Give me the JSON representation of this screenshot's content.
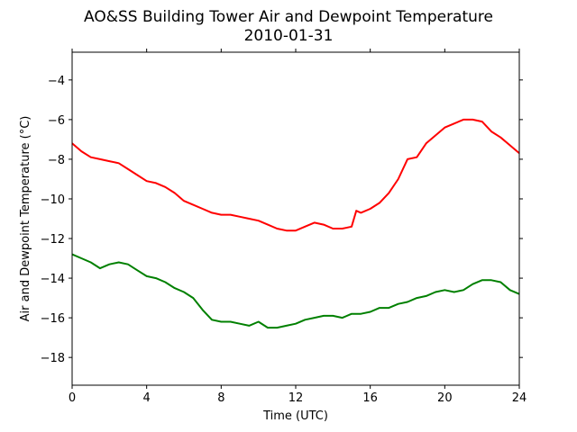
{
  "chart_data": {
    "type": "line",
    "title": "AO&SS Building Tower Air and Dewpoint Temperature",
    "subtitle": "2010-01-31",
    "xlabel": "Time (UTC)",
    "ylabel": "Air and Dewpoint Temperature (°C)",
    "xlim": [
      0,
      24
    ],
    "ylim": [
      -19.4,
      -2.6
    ],
    "xticks": [
      "0",
      "4",
      "8",
      "12",
      "16",
      "20",
      "24"
    ],
    "yticks": [
      "−4",
      "−6",
      "−8",
      "−10",
      "−12",
      "−14",
      "−16",
      "−18"
    ],
    "grid": false,
    "series": [
      {
        "color": "#ff0000",
        "x": [
          0,
          0.5,
          1,
          1.5,
          2,
          2.5,
          3,
          3.5,
          4,
          4.5,
          5,
          5.5,
          6,
          6.5,
          7,
          7.5,
          8,
          8.5,
          9,
          9.5,
          10,
          10.5,
          11,
          11.5,
          12,
          12.5,
          13,
          13.5,
          14,
          14.5,
          15,
          15.25,
          15.5,
          16,
          16.5,
          17,
          17.5,
          18,
          18.5,
          19,
          19.5,
          20,
          20.5,
          21,
          21.5,
          22,
          22.5,
          23,
          23.5,
          24
        ],
        "y": [
          -7.2,
          -7.6,
          -7.9,
          -8.0,
          -8.1,
          -8.2,
          -8.5,
          -8.8,
          -9.1,
          -9.2,
          -9.4,
          -9.7,
          -10.1,
          -10.3,
          -10.5,
          -10.7,
          -10.8,
          -10.8,
          -10.9,
          -11.0,
          -11.1,
          -11.3,
          -11.5,
          -11.6,
          -11.6,
          -11.4,
          -11.2,
          -11.3,
          -11.5,
          -11.5,
          -11.4,
          -10.6,
          -10.7,
          -10.5,
          -10.2,
          -9.7,
          -9.0,
          -8.0,
          -7.9,
          -7.2,
          -6.8,
          -6.4,
          -6.2,
          -6.0,
          -6.0,
          -6.1,
          -6.6,
          -6.9,
          -7.3,
          -7.7
        ]
      },
      {
        "color": "#008000",
        "x": [
          0,
          0.5,
          1,
          1.5,
          2,
          2.5,
          3,
          3.5,
          4,
          4.5,
          5,
          5.5,
          6,
          6.5,
          7,
          7.5,
          8,
          8.5,
          9,
          9.5,
          10,
          10.5,
          11,
          11.5,
          12,
          12.5,
          13,
          13.5,
          14,
          14.5,
          15,
          15.5,
          16,
          16.5,
          17,
          17.5,
          18,
          18.5,
          19,
          19.5,
          20,
          20.5,
          21,
          21.5,
          22,
          22.5,
          23,
          23.5,
          24
        ],
        "y": [
          -12.8,
          -13.0,
          -13.2,
          -13.5,
          -13.3,
          -13.2,
          -13.3,
          -13.6,
          -13.9,
          -14.0,
          -14.2,
          -14.5,
          -14.7,
          -15.0,
          -15.6,
          -16.1,
          -16.2,
          -16.2,
          -16.3,
          -16.4,
          -16.2,
          -16.5,
          -16.5,
          -16.4,
          -16.3,
          -16.1,
          -16.0,
          -15.9,
          -15.9,
          -16.0,
          -15.8,
          -15.8,
          -15.7,
          -15.5,
          -15.5,
          -15.3,
          -15.2,
          -15.0,
          -14.9,
          -14.7,
          -14.6,
          -14.7,
          -14.6,
          -14.3,
          -14.1,
          -14.1,
          -14.2,
          -14.6,
          -14.8
        ]
      }
    ]
  }
}
